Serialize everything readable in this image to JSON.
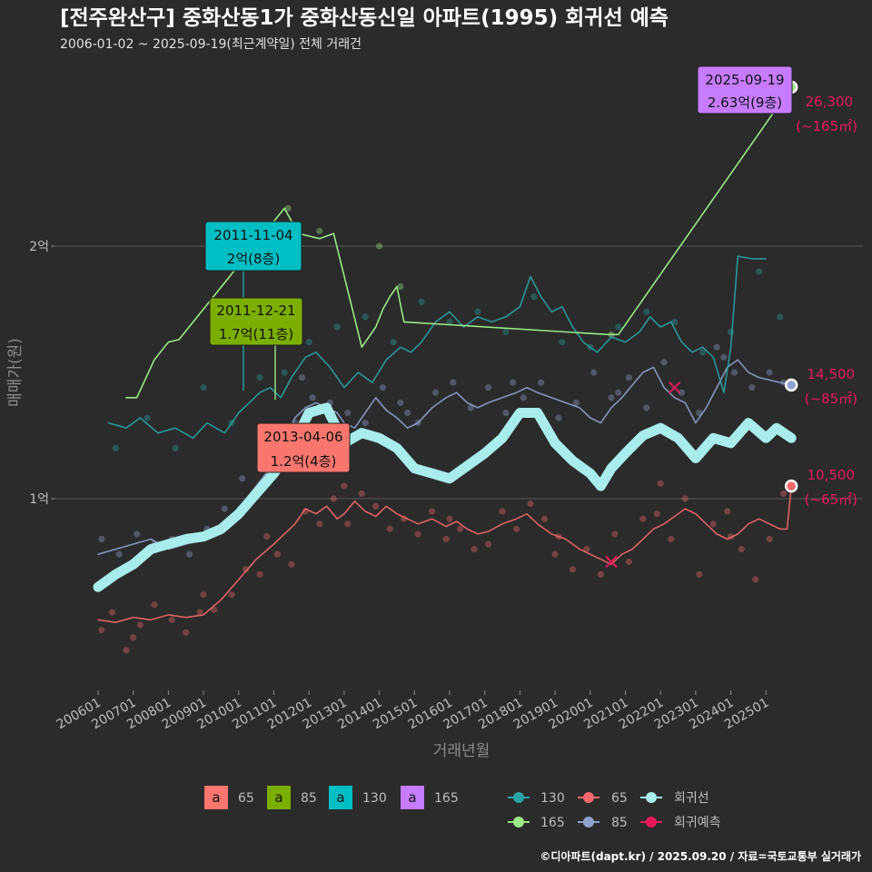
{
  "title": "[전주완산구] 중화산동1가 중화산동신일 아파트(1995) 회귀선 예측",
  "subtitle": "2006-01-02 ~ 2025-09-19(최근계약일) 전체 거래건",
  "footer": "©디아파트(dapt.kr) / 2025.09.20 / 자료=국토교통부 실거래가",
  "colors": {
    "s65": "#f2686a",
    "s85": "#8ea2cf",
    "s130": "#2aa3a6",
    "s165": "#9bea86",
    "regression": "#a8ecec",
    "forecast": "#e8195a",
    "box65": "#f8766d",
    "box85": "#7cae00",
    "box130": "#00bfc4",
    "box165": "#c77cff"
  },
  "legend": {
    "boxes": [
      {
        "glyph": "a",
        "label": "65",
        "color": "#f8766d"
      },
      {
        "glyph": "a",
        "label": "85",
        "color": "#7cae00"
      },
      {
        "glyph": "a",
        "label": "130",
        "color": "#00bfc4"
      },
      {
        "glyph": "a",
        "label": "165",
        "color": "#c77cff"
      }
    ],
    "lines": [
      {
        "label": "130",
        "color": "#2aa3a6"
      },
      {
        "label": "65",
        "color": "#f2686a"
      },
      {
        "label": "회귀선",
        "color": "#a8ecec"
      },
      {
        "label": "165",
        "color": "#9bea86"
      },
      {
        "label": "85",
        "color": "#8ea2cf"
      },
      {
        "label": "회귀예측",
        "color": "#e8195a"
      }
    ]
  },
  "callouts": [
    {
      "date": "2025-09-19",
      "price": "2.63억(9층)",
      "color": "#c77cff"
    },
    {
      "date": "2011-11-04",
      "price": "2억(8층)",
      "color": "#00bfc4"
    },
    {
      "date": "2011-12-21",
      "price": "1.7억(11층)",
      "color": "#7cae00"
    },
    {
      "date": "2013-04-06",
      "price": "1.2억(4층)",
      "color": "#f8766d"
    }
  ],
  "end_labels": [
    {
      "value": "26,300",
      "area": "(~165㎡)"
    },
    {
      "value": "14,500",
      "area": "(~85㎡)"
    },
    {
      "value": "10,500",
      "area": "(~65㎡)"
    }
  ],
  "chart_data": {
    "type": "line",
    "xlabel": "거래년월",
    "ylabel": "매매가(원)",
    "x_ticks": [
      "200601",
      "200701",
      "200801",
      "200901",
      "201001",
      "201101",
      "201201",
      "201301",
      "201401",
      "201501",
      "201601",
      "201701",
      "201801",
      "201901",
      "202001",
      "202101",
      "202201",
      "202301",
      "202401",
      "202501"
    ],
    "y_ticks": [
      {
        "value": 1.0,
        "label": "1억"
      },
      {
        "value": 2.0,
        "label": "2억"
      }
    ],
    "ylim": [
      0.2,
      2.95
    ],
    "xlim": [
      2005.83,
      2026.0
    ],
    "units": "억원",
    "series": [
      {
        "name": "65",
        "key": "s65",
        "x": [
          2006.0,
          2006.5,
          2007.0,
          2007.5,
          2008.0,
          2008.5,
          2009.0,
          2009.5,
          2010.0,
          2010.5,
          2011.0,
          2011.3,
          2011.6,
          2011.9,
          2012.2,
          2012.5,
          2012.8,
          2013.0,
          2013.3,
          2013.6,
          2013.9,
          2014.2,
          2014.5,
          2014.8,
          2015.1,
          2015.5,
          2015.9,
          2016.2,
          2016.5,
          2016.8,
          2017.1,
          2017.5,
          2017.9,
          2018.2,
          2018.5,
          2018.9,
          2019.3,
          2019.7,
          2020.0,
          2020.3,
          2020.6,
          2020.9,
          2021.2,
          2021.5,
          2021.8,
          2022.1,
          2022.4,
          2022.7,
          2023.0,
          2023.3,
          2023.6,
          2023.9,
          2024.2,
          2024.5,
          2024.8,
          2025.1,
          2025.4,
          2025.6,
          2025.72
        ],
        "y": [
          0.52,
          0.51,
          0.53,
          0.52,
          0.54,
          0.53,
          0.54,
          0.6,
          0.68,
          0.76,
          0.82,
          0.86,
          0.9,
          0.96,
          0.94,
          0.97,
          0.92,
          0.94,
          0.99,
          0.95,
          0.93,
          0.97,
          0.94,
          0.92,
          0.9,
          0.92,
          0.89,
          0.91,
          0.88,
          0.86,
          0.87,
          0.9,
          0.92,
          0.94,
          0.9,
          0.86,
          0.84,
          0.8,
          0.78,
          0.76,
          0.74,
          0.78,
          0.8,
          0.84,
          0.88,
          0.9,
          0.93,
          0.96,
          0.94,
          0.9,
          0.86,
          0.84,
          0.86,
          0.9,
          0.92,
          0.9,
          0.88,
          0.88,
          1.05
        ]
      },
      {
        "name": "85",
        "key": "s85",
        "x": [
          2006.0,
          2006.5,
          2007.0,
          2007.5,
          2008.0,
          2008.5,
          2009.0,
          2009.5,
          2010.0,
          2010.5,
          2011.0,
          2011.3,
          2011.6,
          2011.9,
          2012.2,
          2012.5,
          2012.8,
          2013.0,
          2013.3,
          2013.6,
          2013.9,
          2014.2,
          2014.5,
          2014.8,
          2015.1,
          2015.5,
          2015.9,
          2016.2,
          2016.5,
          2016.8,
          2017.1,
          2017.5,
          2017.9,
          2018.2,
          2018.5,
          2018.9,
          2019.3,
          2019.7,
          2020.0,
          2020.3,
          2020.6,
          2020.9,
          2021.2,
          2021.5,
          2021.8,
          2022.1,
          2022.4,
          2022.7,
          2023.0,
          2023.3,
          2023.6,
          2023.9,
          2024.2,
          2024.5,
          2024.8,
          2025.1,
          2025.4,
          2025.72
        ],
        "y": [
          0.78,
          0.8,
          0.82,
          0.84,
          0.8,
          0.82,
          0.84,
          0.88,
          0.96,
          1.05,
          1.14,
          1.22,
          1.32,
          1.36,
          1.38,
          1.36,
          1.34,
          1.3,
          1.28,
          1.34,
          1.4,
          1.35,
          1.32,
          1.28,
          1.3,
          1.36,
          1.4,
          1.42,
          1.38,
          1.36,
          1.38,
          1.4,
          1.42,
          1.44,
          1.42,
          1.4,
          1.38,
          1.36,
          1.32,
          1.3,
          1.36,
          1.4,
          1.45,
          1.5,
          1.52,
          1.44,
          1.4,
          1.38,
          1.3,
          1.36,
          1.44,
          1.52,
          1.55,
          1.5,
          1.48,
          1.47,
          1.46,
          1.45
        ]
      },
      {
        "name": "130",
        "key": "s130",
        "x": [
          2006.3,
          2006.8,
          2007.2,
          2007.7,
          2008.2,
          2008.7,
          2009.1,
          2009.6,
          2010.0,
          2010.3,
          2010.6,
          2010.9,
          2011.2,
          2011.5,
          2011.9,
          2012.2,
          2012.6,
          2013.0,
          2013.4,
          2013.8,
          2014.2,
          2014.6,
          2014.9,
          2015.2,
          2015.6,
          2016.0,
          2016.4,
          2016.8,
          2017.2,
          2017.6,
          2018.0,
          2018.3,
          2018.6,
          2018.9,
          2019.2,
          2019.5,
          2019.8,
          2020.2,
          2020.6,
          2021.0,
          2021.4,
          2021.7,
          2022.0,
          2022.3,
          2022.6,
          2022.9,
          2023.2,
          2023.5,
          2023.8,
          2024.0,
          2024.2,
          2024.6,
          2025.0
        ],
        "y": [
          1.3,
          1.28,
          1.32,
          1.26,
          1.28,
          1.24,
          1.3,
          1.26,
          1.34,
          1.38,
          1.42,
          1.44,
          1.4,
          1.48,
          1.56,
          1.58,
          1.52,
          1.44,
          1.5,
          1.46,
          1.55,
          1.6,
          1.58,
          1.62,
          1.7,
          1.74,
          1.68,
          1.72,
          1.7,
          1.72,
          1.76,
          1.88,
          1.8,
          1.74,
          1.76,
          1.68,
          1.62,
          1.58,
          1.64,
          1.62,
          1.66,
          1.72,
          1.68,
          1.7,
          1.62,
          1.58,
          1.6,
          1.56,
          1.42,
          1.6,
          1.96,
          1.95,
          1.95
        ]
      },
      {
        "name": "165",
        "key": "s165",
        "x": [
          2006.8,
          2007.1,
          2007.6,
          2008.0,
          2008.3,
          2011.3,
          2011.7,
          2012.3,
          2012.7,
          2013.5,
          2013.9,
          2014.1,
          2014.3,
          2014.5,
          2014.7,
          2020.5,
          2020.8,
          2025.72
        ],
        "y": [
          1.4,
          1.4,
          1.55,
          1.62,
          1.63,
          2.15,
          2.05,
          2.03,
          2.05,
          1.6,
          1.68,
          1.75,
          1.8,
          1.84,
          1.7,
          1.65,
          1.65,
          2.63
        ]
      },
      {
        "name": "회귀선",
        "key": "regression",
        "x": [
          2006.0,
          2006.5,
          2007.0,
          2007.5,
          2008.0,
          2008.5,
          2009.0,
          2009.5,
          2010.0,
          2010.5,
          2011.0,
          2011.5,
          2012.0,
          2012.5,
          2013.0,
          2013.5,
          2014.0,
          2014.5,
          2015.0,
          2015.5,
          2016.0,
          2016.5,
          2017.0,
          2017.5,
          2018.0,
          2018.5,
          2019.0,
          2019.5,
          2020.0,
          2020.3,
          2020.6,
          2021.0,
          2021.5,
          2022.0,
          2022.5,
          2023.0,
          2023.5,
          2024.0,
          2024.5,
          2025.0,
          2025.3,
          2025.72
        ],
        "y": [
          0.65,
          0.7,
          0.74,
          0.8,
          0.82,
          0.84,
          0.85,
          0.88,
          0.94,
          1.02,
          1.1,
          1.2,
          1.34,
          1.36,
          1.22,
          1.26,
          1.24,
          1.2,
          1.12,
          1.1,
          1.08,
          1.13,
          1.18,
          1.24,
          1.34,
          1.34,
          1.22,
          1.15,
          1.1,
          1.05,
          1.12,
          1.18,
          1.25,
          1.28,
          1.24,
          1.16,
          1.24,
          1.22,
          1.3,
          1.24,
          1.28,
          1.24
        ]
      }
    ],
    "forecast_points": [
      {
        "x": 2020.6,
        "y": 0.75
      },
      {
        "x": 2022.4,
        "y": 1.44
      }
    ],
    "end_points": [
      {
        "series": "165",
        "x": 2025.72,
        "y": 2.63
      },
      {
        "series": "85",
        "x": 2025.72,
        "y": 1.45
      },
      {
        "series": "65",
        "x": 2025.72,
        "y": 1.05
      }
    ],
    "scatter": {
      "s65": {
        "x": [
          2006.1,
          2006.4,
          2006.8,
          2007.2,
          2007.6,
          2008.1,
          2008.5,
          2008.9,
          2009.3,
          2009.8,
          2010.2,
          2010.6,
          2011.1,
          2011.5,
          2011.9,
          2012.3,
          2012.7,
          2013.1,
          2013.5,
          2013.9,
          2014.3,
          2014.7,
          2015.1,
          2015.5,
          2015.9,
          2016.3,
          2016.7,
          2017.1,
          2017.5,
          2017.9,
          2018.3,
          2018.7,
          2019.1,
          2019.5,
          2019.9,
          2020.3,
          2020.7,
          2021.1,
          2021.5,
          2021.9,
          2022.3,
          2022.7,
          2023.1,
          2023.5,
          2023.9,
          2024.3,
          2024.7,
          2025.1,
          2025.5,
          2007.0,
          2009.0,
          2010.8,
          2013.0,
          2016.0,
          2019.0,
          2022.0,
          2024.0
        ],
        "y": [
          0.48,
          0.55,
          0.4,
          0.5,
          0.58,
          0.52,
          0.47,
          0.55,
          0.56,
          0.62,
          0.72,
          0.7,
          0.78,
          0.74,
          0.95,
          0.9,
          1.0,
          0.9,
          1.02,
          0.97,
          0.88,
          0.92,
          0.86,
          0.95,
          0.84,
          0.88,
          0.8,
          0.82,
          0.95,
          0.88,
          0.98,
          0.92,
          0.85,
          0.72,
          0.8,
          0.7,
          0.86,
          0.75,
          0.92,
          0.94,
          0.84,
          1.0,
          0.7,
          0.9,
          0.95,
          0.8,
          0.68,
          0.84,
          1.02,
          0.45,
          0.62,
          0.85,
          1.05,
          0.92,
          0.78,
          1.06,
          0.85
        ]
      },
      "s85": {
        "x": [
          2006.1,
          2006.6,
          2007.1,
          2007.6,
          2008.1,
          2008.6,
          2009.1,
          2009.6,
          2010.1,
          2010.6,
          2011.1,
          2011.6,
          2012.1,
          2012.6,
          2013.1,
          2013.6,
          2014.1,
          2014.6,
          2015.1,
          2015.6,
          2016.1,
          2016.6,
          2017.1,
          2017.6,
          2018.1,
          2018.6,
          2019.1,
          2019.6,
          2020.1,
          2020.6,
          2021.1,
          2021.6,
          2022.1,
          2022.6,
          2023.1,
          2023.6,
          2024.1,
          2024.6,
          2025.1,
          2025.5,
          2011.8,
          2014.8,
          2017.8,
          2020.8,
          2023.8
        ],
        "y": [
          0.84,
          0.78,
          0.86,
          0.82,
          0.84,
          0.78,
          0.88,
          0.96,
          1.08,
          1.12,
          1.24,
          1.3,
          1.4,
          1.38,
          1.34,
          1.3,
          1.44,
          1.38,
          1.3,
          1.42,
          1.46,
          1.36,
          1.44,
          1.34,
          1.4,
          1.46,
          1.32,
          1.38,
          1.5,
          1.4,
          1.48,
          1.36,
          1.54,
          1.42,
          1.34,
          1.6,
          1.5,
          1.44,
          1.5,
          1.46,
          1.48,
          1.34,
          1.46,
          1.42,
          1.56
        ]
      },
      "s130": {
        "x": [
          2006.5,
          2007.4,
          2008.2,
          2009.0,
          2009.8,
          2010.6,
          2011.3,
          2012.0,
          2012.8,
          2013.6,
          2014.4,
          2015.2,
          2016.0,
          2016.8,
          2017.6,
          2018.4,
          2019.2,
          2020.0,
          2020.8,
          2021.6,
          2022.4,
          2023.2,
          2024.0,
          2024.8,
          2025.4
        ],
        "y": [
          1.2,
          1.32,
          1.2,
          1.44,
          1.3,
          1.48,
          1.5,
          1.62,
          1.68,
          1.72,
          1.62,
          1.78,
          1.7,
          1.74,
          1.66,
          1.8,
          1.62,
          1.6,
          1.68,
          1.74,
          1.7,
          1.58,
          1.66,
          1.9,
          1.72
        ]
      },
      "s165": {
        "x": [
          2011.4,
          2012.3,
          2014.0,
          2014.6,
          2020.6
        ],
        "y": [
          2.15,
          2.06,
          2.0,
          1.84,
          1.65
        ]
      }
    }
  }
}
